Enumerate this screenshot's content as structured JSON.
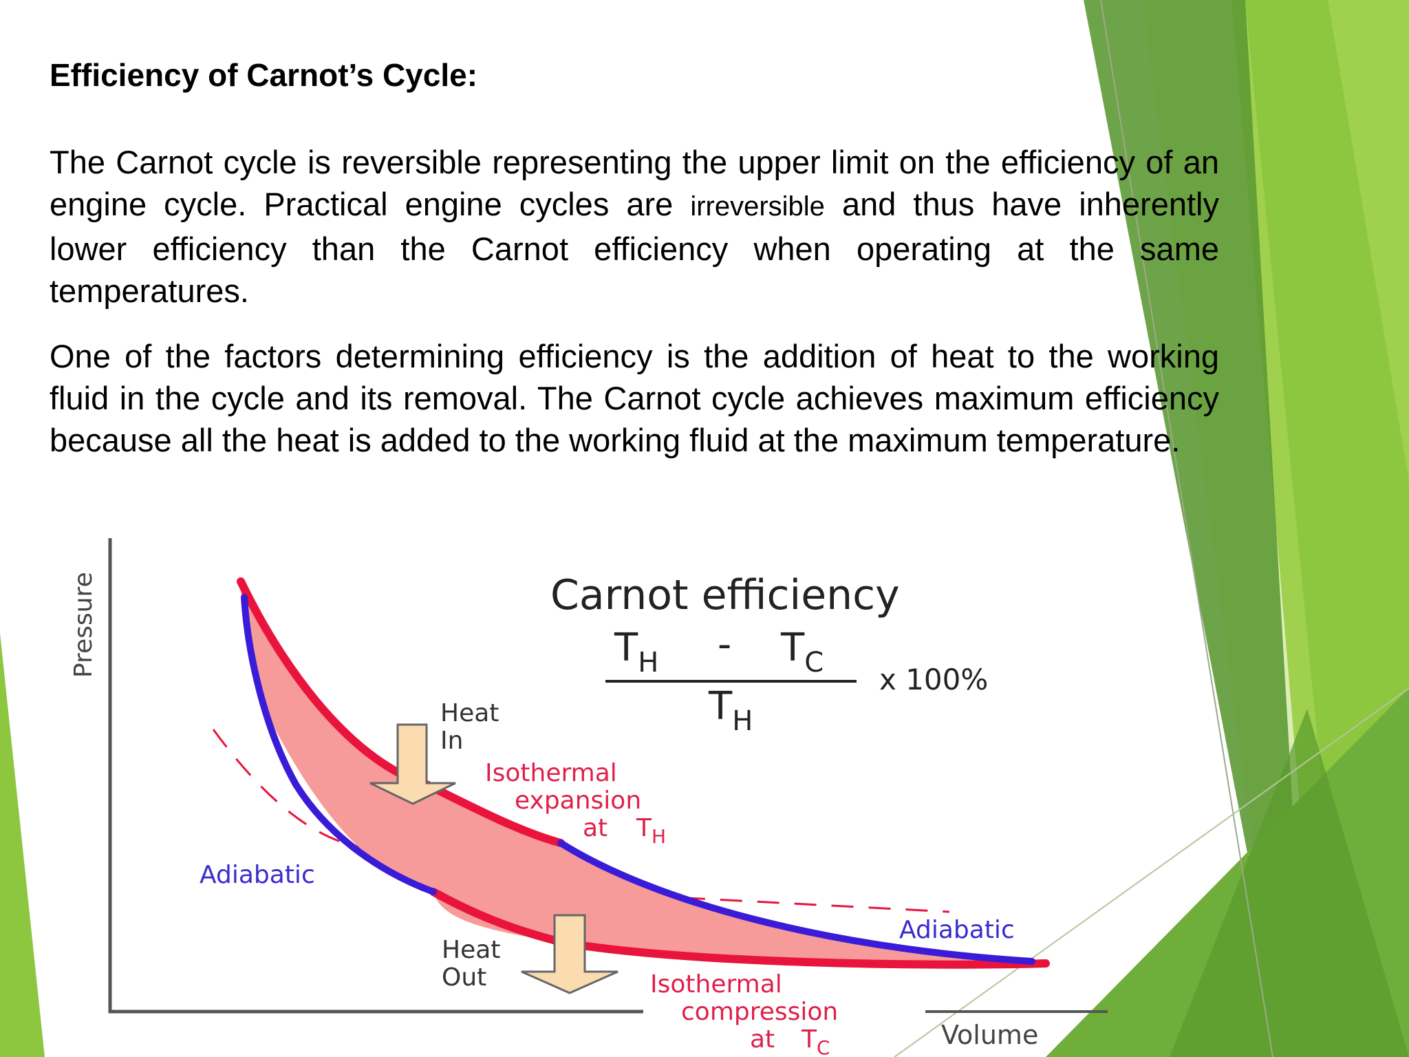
{
  "slide": {
    "title": "Efficiency of Carnot’s Cycle:",
    "paragraph1": {
      "before": "The Carnot cycle is reversible representing the upper limit on the efficiency of an engine cycle. Practical engine cycles are ",
      "emphasis": "irreversible",
      "after": " and thus have inherently lower efficiency than the Carnot efficiency when operating at the same temperatures."
    },
    "paragraph2": "One of the factors determining efficiency is the addition of heat to the working fluid in the cycle and its removal. The Carnot cycle achieves maximum efficiency because all the heat is added to the working fluid at the maximum temperature."
  },
  "diagram": {
    "title": "Carnot efficiency",
    "formula": {
      "num_th": "T",
      "num_th_sub": "H",
      "minus": "-",
      "num_tc": "T",
      "num_tc_sub": "C",
      "den_t": "T",
      "den_sub": "H",
      "factor": "x 100%"
    },
    "y_axis_label": "Pressure",
    "x_axis_label": "Volume",
    "heat_in": [
      "Heat",
      "In"
    ],
    "heat_out": [
      "Heat",
      "Out"
    ],
    "iso_expansion": [
      "Isothermal",
      "expansion",
      "at",
      "T",
      "H"
    ],
    "iso_compression": [
      "Isothermal",
      "compression",
      "at",
      "T",
      "C"
    ],
    "adiabatic_left": "Adiabatic",
    "adiabatic_right": "Adiabatic",
    "colors": {
      "isotherm": "#e8143c",
      "adiabat": "#3a1cd8",
      "fill": "#f79a9a",
      "arrow": "#fbdcb0",
      "label_red": "#e0204a",
      "label_blue": "#3a2bd0",
      "green_dark": "#5c9a2c",
      "green_light": "#8dc63f"
    }
  }
}
